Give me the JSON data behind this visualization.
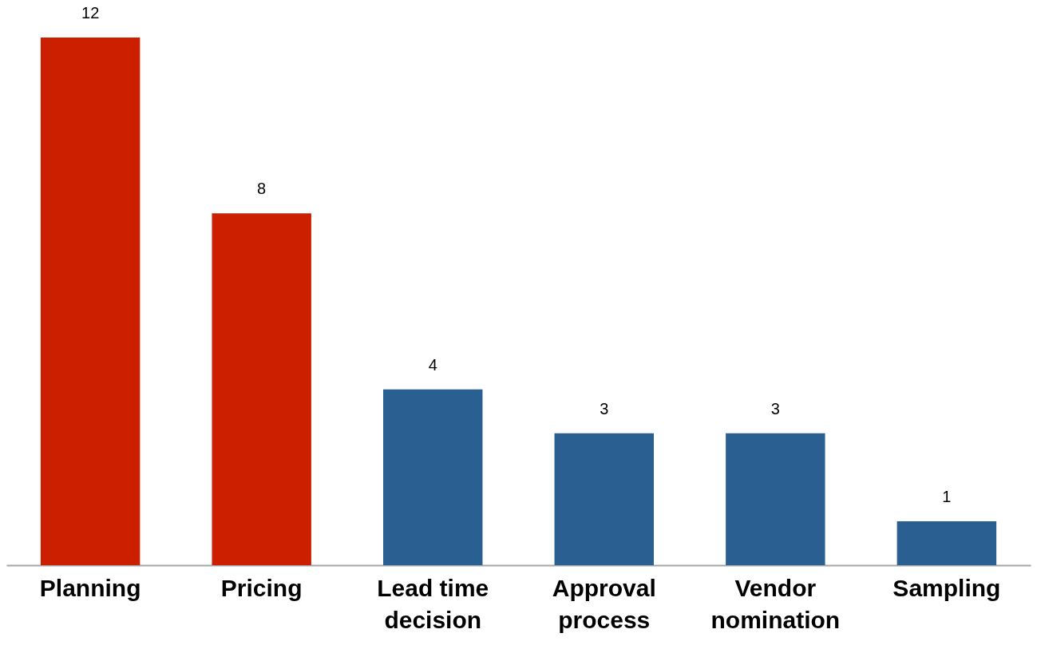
{
  "chart_data": {
    "type": "bar",
    "categories": [
      "Planning",
      "Pricing",
      "Lead time decision",
      "Approval process",
      "Vendor nomination",
      "Sampling"
    ],
    "values": [
      12,
      8,
      4,
      3,
      3,
      1
    ],
    "colors": [
      "#cc1f00",
      "#cc1f00",
      "#2a5f91",
      "#2a5f91",
      "#2a5f91",
      "#2a5f91"
    ],
    "data_labels": true
  }
}
